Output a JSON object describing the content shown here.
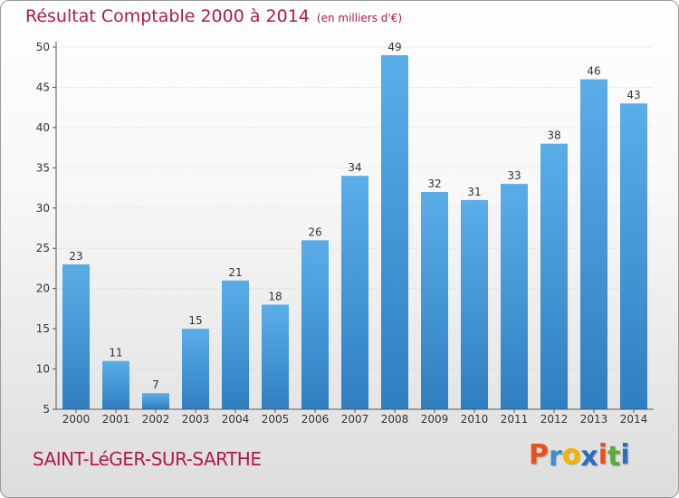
{
  "header": {
    "title": "Résultat Comptable 2000 à 2014",
    "subtitle": "(en milliers d'€)"
  },
  "footer": {
    "commune": "SAINT-LéGER-SUR-SARTHE",
    "logo_letters": [
      "P",
      "r",
      "o",
      "x",
      "i",
      "t",
      "i"
    ],
    "logo_colors": [
      "#e8501c",
      "#3a8fd0",
      "#f4b400",
      "#2a6fbf",
      "#e8501c",
      "#5aaa3a",
      "#2a6fbf"
    ]
  },
  "chart_data": {
    "type": "bar",
    "categories": [
      "2000",
      "2001",
      "2002",
      "2003",
      "2004",
      "2005",
      "2006",
      "2007",
      "2008",
      "2009",
      "2010",
      "2011",
      "2012",
      "2013",
      "2014"
    ],
    "values": [
      23,
      11,
      7,
      15,
      21,
      18,
      26,
      34,
      49,
      32,
      31,
      33,
      38,
      46,
      43
    ],
    "ylim": [
      5,
      50
    ],
    "yticks": [
      5,
      10,
      15,
      20,
      25,
      30,
      35,
      40,
      45,
      50
    ],
    "grid": true,
    "bar_color_top": "#5aaee8",
    "bar_color_bottom": "#2f7fc1"
  }
}
